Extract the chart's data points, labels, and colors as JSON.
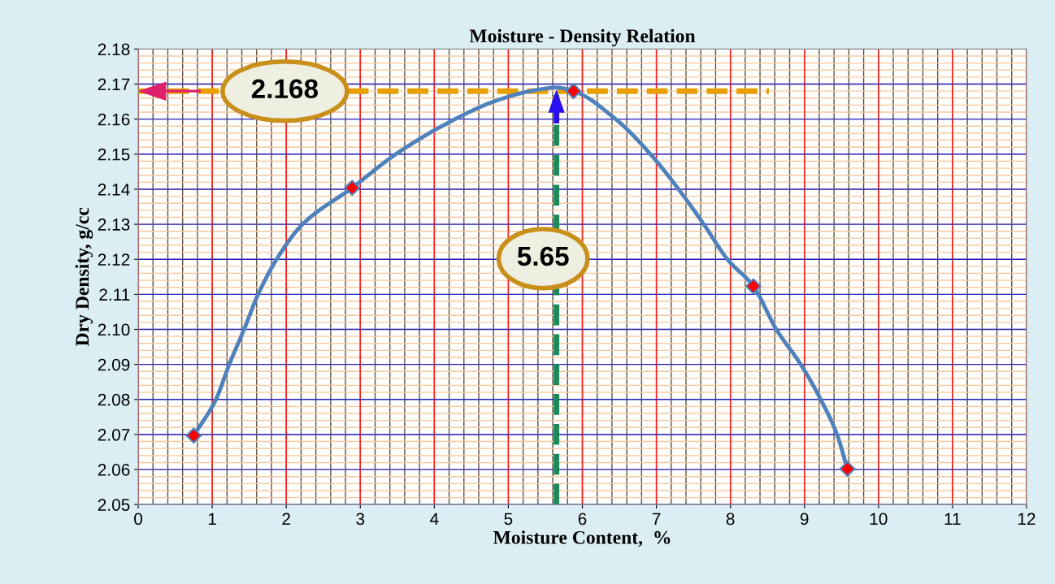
{
  "chart_data": {
    "type": "line",
    "title": "Moisture - Density Relation",
    "xlabel": "Moisture Content,  %",
    "ylabel": "Dry Density, g/cc",
    "series": [
      {
        "color": "#4f81bd",
        "x": [
          0.75,
          1.05,
          1.23,
          1.43,
          1.62,
          1.87,
          2.22,
          2.89,
          3.48,
          4.28,
          4.8,
          5.3,
          5.65,
          5.88,
          6.45,
          6.92,
          7.3,
          7.64,
          7.96,
          8.31,
          8.62,
          8.95,
          9.22,
          9.44,
          9.58
        ],
        "values": [
          2.0697,
          2.08,
          2.09,
          2.1,
          2.11,
          2.12,
          2.13,
          2.1404,
          2.15,
          2.16,
          2.165,
          2.168,
          2.169,
          2.168,
          2.16,
          2.15,
          2.14,
          2.13,
          2.12,
          2.1123,
          2.1,
          2.09,
          2.08,
          2.07,
          2.0602
        ]
      },
      {
        "type": "scatter",
        "color": "#ff0000",
        "marker": "diamond",
        "x": [
          0.75,
          2.89,
          5.88,
          8.31,
          9.58
        ],
        "values": [
          2.0697,
          2.1404,
          2.168,
          2.1123,
          2.0602
        ]
      }
    ],
    "legend": false,
    "xlim": [
      0,
      12
    ],
    "ylim": [
      2.05,
      2.18
    ],
    "xticks": [
      0,
      1,
      2,
      3,
      4,
      5,
      6,
      7,
      8,
      9,
      10,
      11,
      12
    ],
    "yticks": [
      {
        "value": 2.05,
        "label": "2.05"
      },
      {
        "value": 2.06,
        "label": "2.06"
      },
      {
        "value": 2.07,
        "label": "2.07"
      },
      {
        "value": 2.08,
        "label": "2.08"
      },
      {
        "value": 2.09,
        "label": "2.09"
      },
      {
        "value": 2.1,
        "label": "2.10"
      },
      {
        "value": 2.11,
        "label": "2.11"
      },
      {
        "value": 2.12,
        "label": "2.12"
      },
      {
        "value": 2.13,
        "label": "2.13"
      },
      {
        "value": 2.14,
        "label": "2.14"
      },
      {
        "value": 2.15,
        "label": "2.15"
      },
      {
        "value": 2.16,
        "label": "2.16"
      },
      {
        "value": 2.17,
        "label": "2.17"
      },
      {
        "value": 2.18,
        "label": "2.18"
      }
    ],
    "grid": true,
    "ref_lines": [
      {
        "axis": "y",
        "value": 2.168,
        "label": "2.168",
        "line_style": "dashed",
        "color": "#e8a000"
      },
      {
        "axis": "x",
        "value": 5.65,
        "label": "5.65",
        "line_style": "dashed",
        "color": "#1a8a5a"
      }
    ]
  }
}
